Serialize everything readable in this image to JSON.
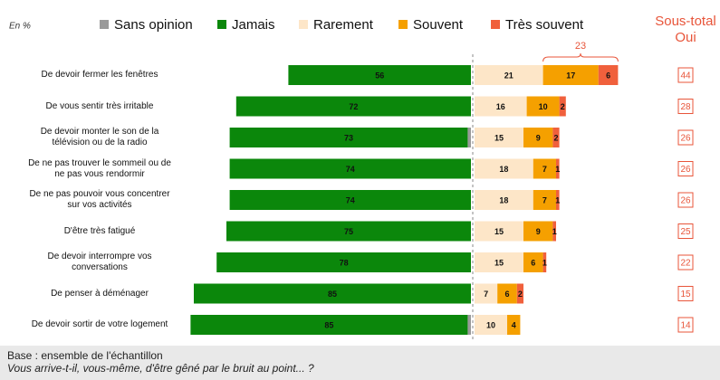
{
  "chart_data": {
    "type": "diverging-bar",
    "unit_label": "En %",
    "categories": [
      "De devoir fermer les fenêtres",
      "De vous sentir très irritable",
      "De devoir monter le son de la\ntélévision ou de la radio",
      "De ne pas trouver le sommeil ou de\nne pas vous rendormir",
      "De ne pas pouvoir vous concentrer\nsur vos activités",
      "D'être très fatigué",
      "De devoir interrompre vos\nconversations",
      "De penser à déménager",
      "De devoir sortir de votre logement"
    ],
    "series": [
      {
        "name": "Sans opinion",
        "color": "#9a9a9a",
        "side": "left",
        "values": [
          null,
          null,
          1,
          null,
          null,
          null,
          null,
          null,
          1
        ]
      },
      {
        "name": "Jamais",
        "color": "#0b870b",
        "side": "left",
        "values": [
          56,
          72,
          73,
          74,
          74,
          75,
          78,
          85,
          85
        ]
      },
      {
        "name": "Rarement",
        "color": "#fde6c8",
        "side": "right",
        "values": [
          21,
          16,
          15,
          18,
          18,
          15,
          15,
          7,
          10
        ]
      },
      {
        "name": "Souvent",
        "color": "#f5a000",
        "side": "right",
        "values": [
          17,
          10,
          9,
          7,
          7,
          9,
          6,
          6,
          4
        ]
      },
      {
        "name": "Très souvent",
        "color": "#f0603c",
        "side": "right",
        "values": [
          6,
          2,
          2,
          1,
          1,
          1,
          1,
          2,
          null
        ]
      }
    ],
    "annotation": "23",
    "subtotal_title": [
      "Sous-total",
      "Oui"
    ],
    "subtotal": [
      44,
      28,
      26,
      26,
      26,
      25,
      22,
      15,
      14
    ],
    "footer": [
      "Base : ensemble de l'échantillon",
      "Vous arrive-t-il, vous-même, d'être gêné par le bruit au point... ?"
    ]
  }
}
